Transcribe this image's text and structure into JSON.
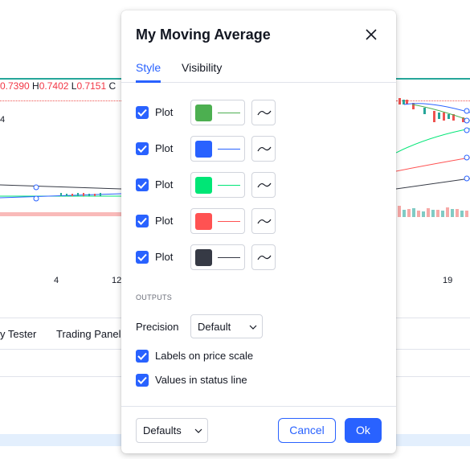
{
  "background": {
    "ohlc": {
      "o_val": "0.7390",
      "h_key": "H",
      "h_val": "0.7402",
      "l_key": "L",
      "l_val": "0.7151",
      "c_key": "C"
    },
    "y_label": "4",
    "x_ticks": [
      "4",
      "12",
      "19"
    ],
    "bottom_tabs": [
      "y Tester",
      "Trading Panel"
    ]
  },
  "dialog": {
    "title": "My Moving Average",
    "tabs": [
      {
        "label": "Style",
        "active": true
      },
      {
        "label": "Visibility",
        "active": false
      }
    ],
    "plots": [
      {
        "label": "Plot",
        "checked": true,
        "color": "#4caf50"
      },
      {
        "label": "Plot",
        "checked": true,
        "color": "#2962ff"
      },
      {
        "label": "Plot",
        "checked": true,
        "color": "#00e676"
      },
      {
        "label": "Plot",
        "checked": true,
        "color": "#ff5252"
      },
      {
        "label": "Plot",
        "checked": true,
        "color": "#363a45"
      }
    ],
    "outputs_heading": "OUTPUTS",
    "precision": {
      "label": "Precision",
      "value": "Default"
    },
    "labels_on_price_scale": {
      "label": "Labels on price scale",
      "checked": true
    },
    "values_in_status_line": {
      "label": "Values in status line",
      "checked": true
    },
    "footer": {
      "defaults_label": "Defaults",
      "cancel_label": "Cancel",
      "ok_label": "Ok"
    }
  },
  "colors": {
    "accent": "#2962ff",
    "text": "#131722",
    "border": "#d1d4dc"
  }
}
